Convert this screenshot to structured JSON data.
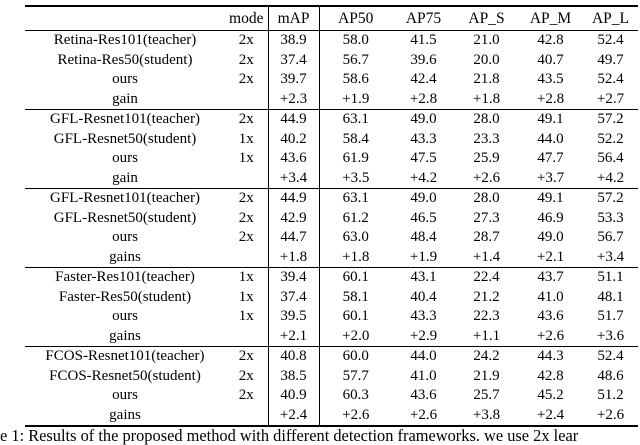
{
  "table": {
    "headers": [
      "",
      "mode",
      "mAP",
      "AP50",
      "AP75",
      "AP_S",
      "AP_M",
      "AP_L"
    ],
    "blocks": [
      {
        "rows": [
          {
            "cells": [
              "Retina-Res101(teacher)",
              "2x",
              "38.9",
              "58.0",
              "41.5",
              "21.0",
              "42.8",
              "52.4"
            ]
          },
          {
            "cells": [
              "Retina-Res50(student)",
              "2x",
              "37.4",
              "56.7",
              "39.6",
              "20.0",
              "40.7",
              "49.7"
            ]
          },
          {
            "cells": [
              "ours",
              "2x",
              "39.7",
              "58.6",
              "42.4",
              "21.8",
              "43.5",
              "52.4"
            ]
          },
          {
            "cells": [
              "gain",
              "",
              "+2.3",
              "+1.9",
              "+2.8",
              "+1.8",
              "+2.8",
              "+2.7"
            ]
          }
        ]
      },
      {
        "rows": [
          {
            "cells": [
              "GFL-Resnet101(teacher)",
              "2x",
              "44.9",
              "63.1",
              "49.0",
              "28.0",
              "49.1",
              "57.2"
            ]
          },
          {
            "cells": [
              "GFL-Resnet50(student)",
              "1x",
              "40.2",
              "58.4",
              "43.3",
              "23.3",
              "44.0",
              "52.2"
            ]
          },
          {
            "cells": [
              "ours",
              "1x",
              "43.6",
              "61.9",
              "47.5",
              "25.9",
              "47.7",
              "56.4"
            ]
          },
          {
            "cells": [
              "gain",
              "",
              "+3.4",
              "+3.5",
              "+4.2",
              "+2.6",
              "+3.7",
              "+4.2"
            ]
          }
        ]
      },
      {
        "rows": [
          {
            "cells": [
              "GFL-Resnet101(teacher)",
              "2x",
              "44.9",
              "63.1",
              "49.0",
              "28.0",
              "49.1",
              "57.2"
            ]
          },
          {
            "cells": [
              "GFL-Resnet50(student)",
              "2x",
              "42.9",
              "61.2",
              "46.5",
              "27.3",
              "46.9",
              "53.3"
            ]
          },
          {
            "cells": [
              "ours",
              "2x",
              "44.7",
              "63.0",
              "48.4",
              "28.7",
              "49.0",
              "56.7"
            ]
          },
          {
            "cells": [
              "gains",
              "",
              "+1.8",
              "+1.8",
              "+1.9",
              "+1.4",
              "+2.1",
              "+3.4"
            ]
          }
        ]
      },
      {
        "rows": [
          {
            "cells": [
              "Faster-Res101(teacher)",
              "1x",
              "39.4",
              "60.1",
              "43.1",
              "22.4",
              "43.7",
              "51.1"
            ]
          },
          {
            "cells": [
              "Faster-Res50(student)",
              "1x",
              "37.4",
              "58.1",
              "40.4",
              "21.2",
              "41.0",
              "48.1"
            ]
          },
          {
            "cells": [
              "ours",
              "1x",
              "39.5",
              "60.1",
              "43.3",
              "22.3",
              "43.6",
              "51.7"
            ]
          },
          {
            "cells": [
              "gains",
              "",
              "+2.1",
              "+2.0",
              "+2.9",
              "+1.1",
              "+2.6",
              "+3.6"
            ]
          }
        ]
      },
      {
        "rows": [
          {
            "cells": [
              "FCOS-Resnet101(teacher)",
              "2x",
              "40.8",
              "60.0",
              "44.0",
              "24.2",
              "44.3",
              "52.4"
            ]
          },
          {
            "cells": [
              "FCOS-Resnet50(student)",
              "2x",
              "38.5",
              "57.7",
              "41.0",
              "21.9",
              "42.8",
              "48.6"
            ]
          },
          {
            "cells": [
              "ours",
              "2x",
              "40.9",
              "60.3",
              "43.6",
              "25.7",
              "45.2",
              "51.2"
            ]
          },
          {
            "cells": [
              "gains",
              "",
              "+2.4",
              "+2.6",
              "+2.6",
              "+3.8",
              "+2.4",
              "+2.6"
            ]
          }
        ]
      }
    ]
  },
  "caption": "e 1: Results of the proposed method with different detection frameworks. we use 2x lear"
}
